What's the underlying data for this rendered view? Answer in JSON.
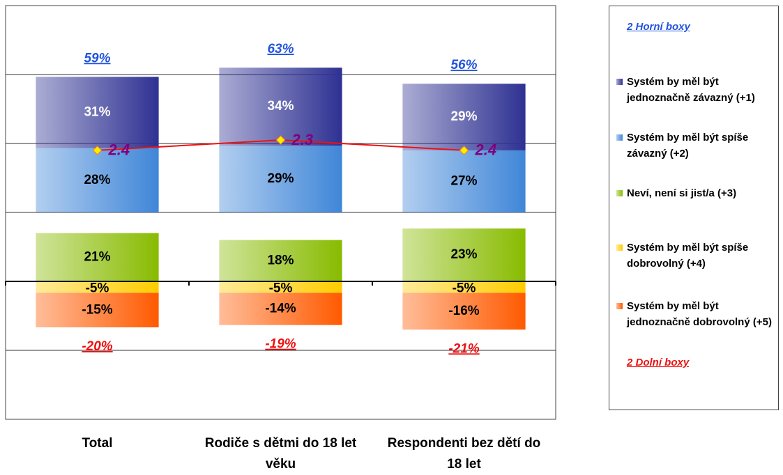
{
  "chart_data": {
    "type": "bar",
    "categories": [
      "Total",
      "Rodiče s dětmi do 18 let věku",
      "Respondenti bez dětí do 18 let"
    ],
    "series": [
      {
        "name": "Systém by měl být jednoznačně závazný (+1)",
        "color": "#2e3192",
        "values": [
          31,
          34,
          29
        ],
        "value_labels": [
          "31%",
          "34%",
          "29%"
        ]
      },
      {
        "name": "Systém by měl být spíše závazný (+2)",
        "color": "#3f86d8",
        "values": [
          28,
          29,
          27
        ],
        "value_labels": [
          "28%",
          "29%",
          "27%"
        ]
      },
      {
        "name": "Neví, není si jist/a (+3)",
        "color": "#88bb00",
        "values": [
          21,
          18,
          23
        ],
        "value_labels": [
          "21%",
          "18%",
          "23%"
        ]
      },
      {
        "name": "Systém by měl být spíše dobrovolný (+4)",
        "color": "#ffcc00",
        "values": [
          -5,
          -5,
          -5
        ],
        "value_labels": [
          "-5%",
          "-5%",
          "-5%"
        ]
      },
      {
        "name": "Systém by měl být jednoznačně dobrovolný (+5)",
        "color": "#ff5a00",
        "values": [
          -15,
          -14,
          -16
        ],
        "value_labels": [
          "-15%",
          "-14%",
          "-16%"
        ]
      }
    ],
    "top_box": {
      "name": "2 Horní boxy",
      "color": "#2255dd",
      "values": [
        59,
        63,
        56
      ],
      "value_labels": [
        "59%",
        "63%",
        "56%"
      ]
    },
    "bottom_box": {
      "name": "2 Dolní boxy",
      "color": "#ee1111",
      "values": [
        -20,
        -19,
        -21
      ],
      "value_labels": [
        "-20%",
        "-19%",
        "-21%"
      ]
    },
    "line": {
      "values": [
        2.4,
        2.3,
        2.4
      ],
      "axis": "y2",
      "color": "#ee1111",
      "label_color": "#800080"
    },
    "ylim": [
      -60,
      120
    ],
    "yticks": [
      -30,
      0,
      30,
      60,
      90
    ],
    "grid": true,
    "y2lim": [
      1,
      5
    ],
    "y2_inverted": true,
    "legend": "right"
  }
}
